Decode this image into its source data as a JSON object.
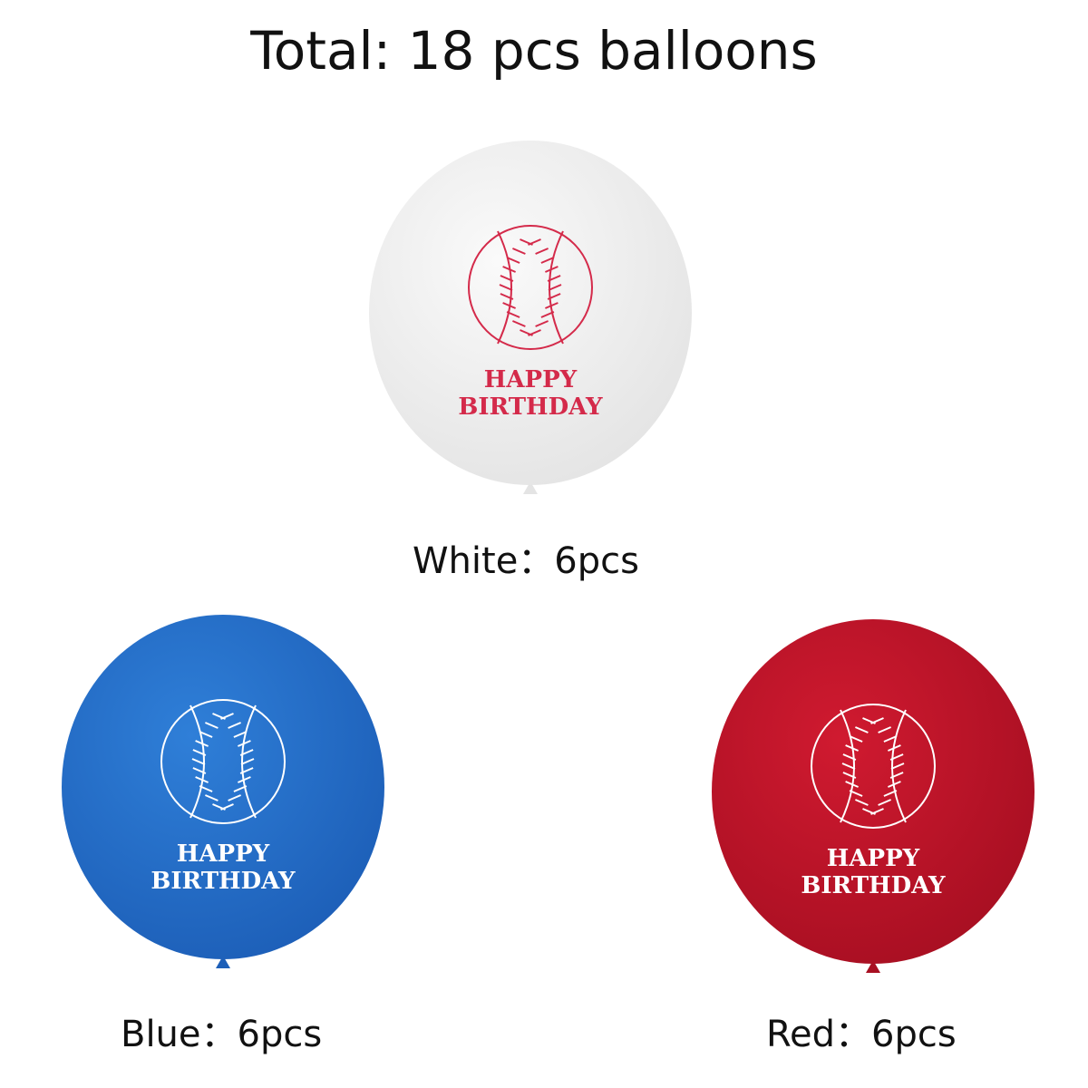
{
  "title": "Total: 18 pcs balloons",
  "balloons": [
    {
      "label": "White：6pcs",
      "color": "#fafafa",
      "print_color": "#d42a4a",
      "line1": "HAPPY",
      "line2": "BIRTHDAY",
      "icon": "baseball-icon"
    },
    {
      "label": "Blue：6pcs",
      "color": "#2f7fd8",
      "print_color": "#ffffff",
      "line1": "HAPPY",
      "line2": "BIRTHDAY",
      "icon": "baseball-icon"
    },
    {
      "label": "Red：6pcs",
      "color": "#d01a30",
      "print_color": "#ffffff",
      "line1": "HAPPY",
      "line2": "BIRTHDAY",
      "icon": "baseball-icon"
    }
  ]
}
